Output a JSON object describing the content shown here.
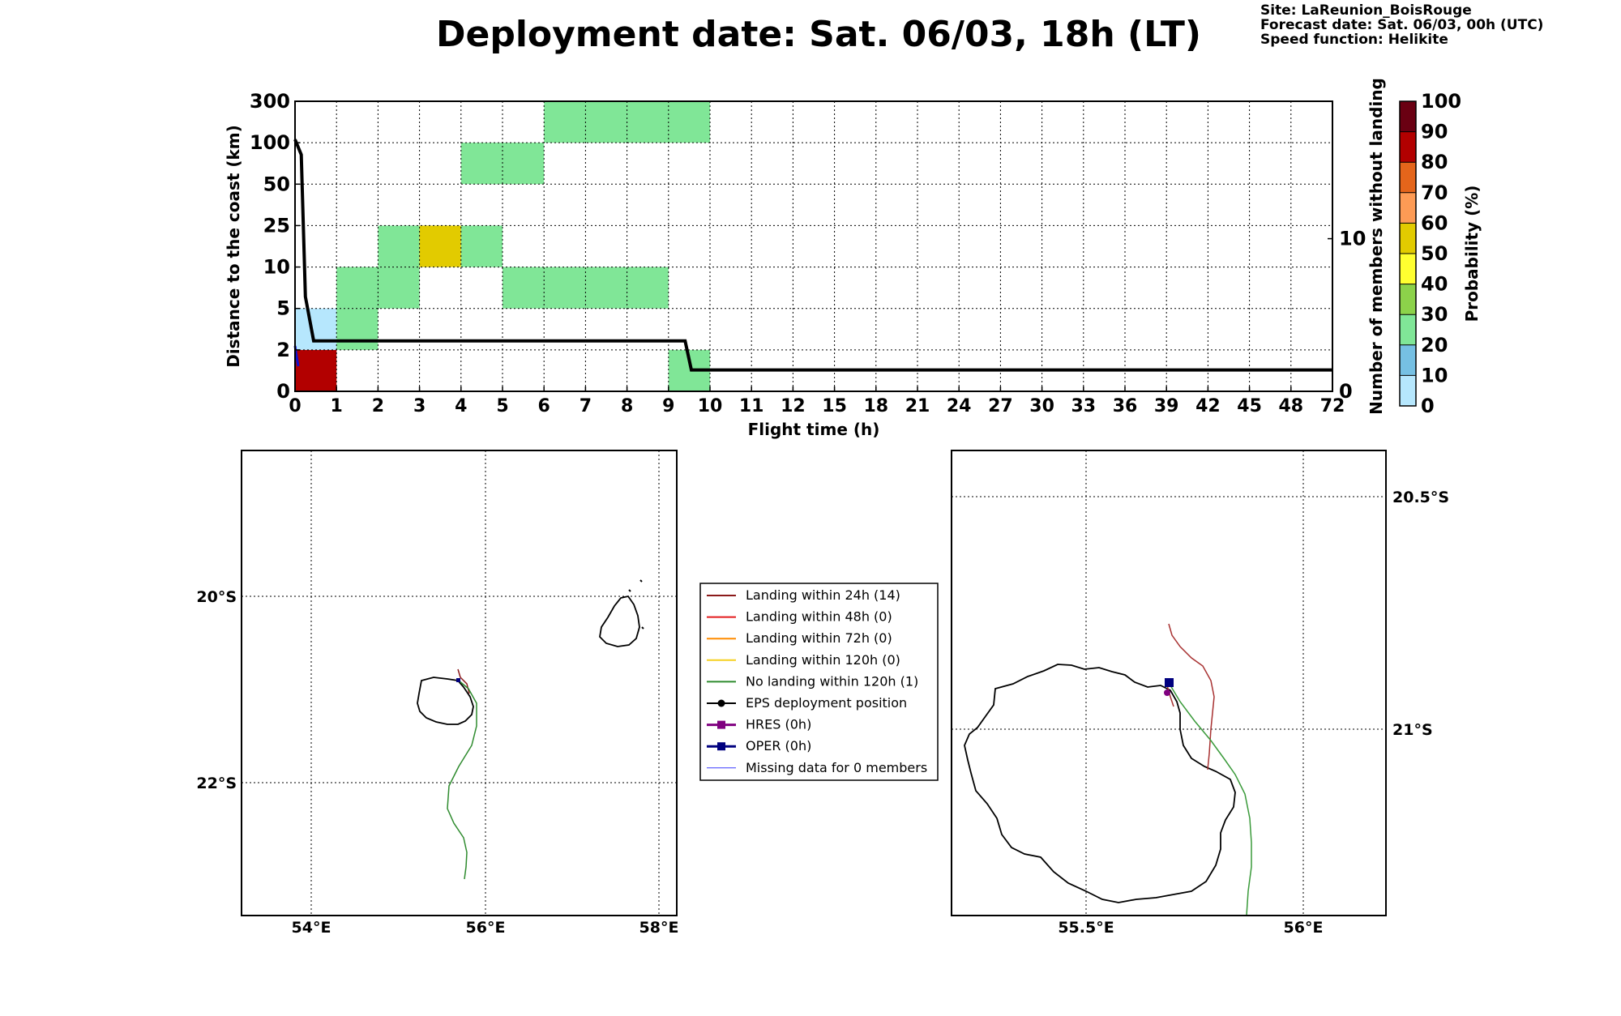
{
  "header": {
    "title": "Deployment date: Sat. 06/03, 18h (LT)",
    "site": "Site: LaReunion_BoisRouge",
    "forecast": "Forecast date: Sat. 06/03, 00h (UTC)",
    "speed": "Speed function: Helikite"
  },
  "colors": {
    "bin_0_10": "#b6e7fd",
    "bin_20_30": "#80e697",
    "bin_50_60": "#e2cb00",
    "bin_80_90": "#b20000",
    "legend_24h": "#8b1a1a",
    "legend_48h": "#e31a1c",
    "legend_72h": "#ff8c00",
    "legend_120h": "#f5d020",
    "legend_no": "#2e8b2e",
    "legend_eps": "#000000",
    "legend_hres": "#800080",
    "legend_oper": "#00007f",
    "legend_missing": "#3b3bff"
  },
  "chart_data": [
    {
      "type": "heatmap",
      "xlabel": "Flight time (h)",
      "ylabel": "Distance to the coast (km)",
      "ylabel_right": "Number of members without landing",
      "x_ticks": [
        "0",
        "1",
        "2",
        "3",
        "4",
        "5",
        "6",
        "7",
        "8",
        "9",
        "10",
        "11",
        "12",
        "15",
        "18",
        "21",
        "24",
        "27",
        "30",
        "33",
        "36",
        "39",
        "42",
        "45",
        "48",
        "72"
      ],
      "y_ticks": [
        "0",
        "2",
        "5",
        "10",
        "25",
        "50",
        "100",
        "300"
      ],
      "right_ticks": [
        "0",
        "10"
      ],
      "right_range": [
        0,
        19
      ],
      "cells": [
        {
          "t0": 0,
          "t1": 1,
          "d0": "0",
          "d1": "2",
          "color": "bin_80_90"
        },
        {
          "t0": 0,
          "t1": 1,
          "d0": "2",
          "d1": "5",
          "color": "bin_0_10"
        },
        {
          "t0": 1,
          "t1": 2,
          "d0": "2",
          "d1": "5",
          "color": "bin_20_30"
        },
        {
          "t0": 1,
          "t1": 3,
          "d0": "5",
          "d1": "10",
          "color": "bin_20_30"
        },
        {
          "t0": 2,
          "t1": 3,
          "d0": "10",
          "d1": "25",
          "color": "bin_20_30"
        },
        {
          "t0": 3,
          "t1": 4,
          "d0": "10",
          "d1": "25",
          "color": "bin_50_60"
        },
        {
          "t0": 4,
          "t1": 5,
          "d0": "10",
          "d1": "25",
          "color": "bin_20_30"
        },
        {
          "t0": 4,
          "t1": 6,
          "d0": "50",
          "d1": "100",
          "color": "bin_20_30"
        },
        {
          "t0": 5,
          "t1": 9,
          "d0": "5",
          "d1": "10",
          "color": "bin_20_30"
        },
        {
          "t0": 6,
          "t1": 10,
          "d0": "100",
          "d1": "300",
          "color": "bin_20_30"
        },
        {
          "t0": 9,
          "t1": 10,
          "d0": "0",
          "d1": "2",
          "color": "bin_20_30"
        }
      ],
      "members_line": {
        "x": [
          0,
          0.15,
          0.25,
          0.45,
          9.4,
          9.55,
          72
        ],
        "y": [
          16.5,
          15.5,
          6.2,
          3.3,
          3.3,
          1.4,
          1.4
        ]
      }
    },
    {
      "type": "heatmap",
      "title": "",
      "colorbar_label": "Probability (%)",
      "ticks": [
        "0",
        "10",
        "20",
        "30",
        "40",
        "50",
        "60",
        "70",
        "80",
        "90",
        "100"
      ],
      "colors": [
        "#b6e7fd",
        "#76c0e3",
        "#80e697",
        "#8cd24a",
        "#ffff30",
        "#e2cb00",
        "#fd9b55",
        "#e4651b",
        "#b20000",
        "#6a0012"
      ]
    }
  ],
  "legend": [
    {
      "label": "Landing within 24h (14)",
      "color": "legend_24h",
      "marker": "none",
      "width": 2
    },
    {
      "label": "Landing within 48h (0)",
      "color": "legend_48h",
      "marker": "none",
      "width": 2
    },
    {
      "label": "Landing within 72h (0)",
      "color": "legend_72h",
      "marker": "none",
      "width": 2
    },
    {
      "label": "Landing within 120h (0)",
      "color": "legend_120h",
      "marker": "none",
      "width": 2
    },
    {
      "label": "No landing within 120h (1)",
      "color": "legend_no",
      "marker": "none",
      "width": 2
    },
    {
      "label": "EPS deployment position",
      "color": "legend_eps",
      "marker": "circle",
      "width": 2
    },
    {
      "label": "HRES (0h)",
      "color": "legend_hres",
      "marker": "square",
      "width": 3
    },
    {
      "label": "OPER (0h)",
      "color": "legend_oper",
      "marker": "square",
      "width": 3
    },
    {
      "label": "Missing data for 0 members",
      "color": "legend_missing",
      "marker": "none",
      "width": 1
    }
  ],
  "map_left": {
    "lon_labels": [
      "54°E",
      "56°E",
      "58°E"
    ],
    "lat_labels": [
      "20°S",
      "22°S"
    ]
  },
  "map_right": {
    "lon_labels": [
      "55.5°E",
      "56°E"
    ],
    "lat_labels": [
      "20.5°S",
      "21°S"
    ]
  }
}
